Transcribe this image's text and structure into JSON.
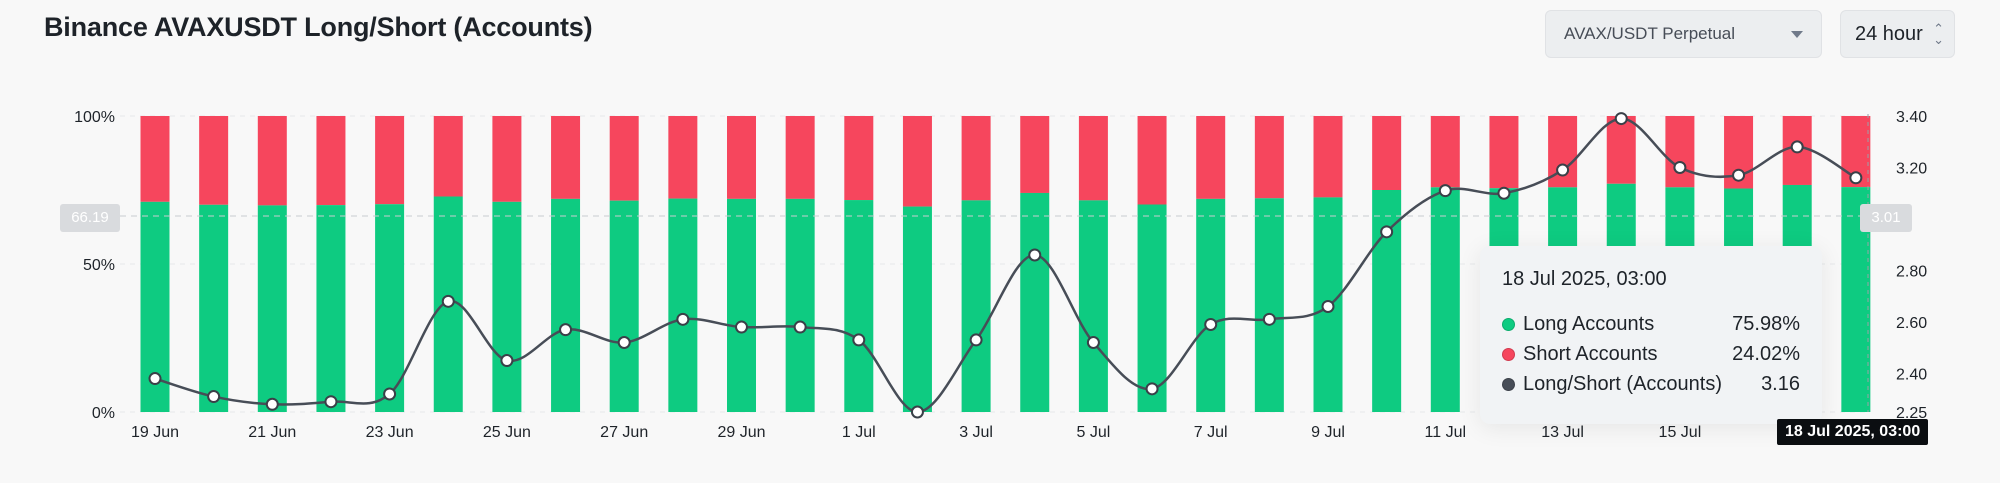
{
  "header": {
    "title": "Binance AVAXUSDT Long/Short (Accounts)",
    "pair_select": "AVAX/USDT Perpetual",
    "period_select": "24 hour"
  },
  "colors": {
    "long": "#0ecb81",
    "short": "#f6465d",
    "ratio_line": "#474d57"
  },
  "crosshair": {
    "left_value": "66.19",
    "right_value": "3.01",
    "x_label": "18 Jul 2025, 03:00"
  },
  "tooltip": {
    "title": "18 Jul 2025, 03:00",
    "rows": [
      {
        "label": "Long Accounts",
        "value": "75.98%"
      },
      {
        "label": "Short Accounts",
        "value": "24.02%"
      },
      {
        "label": "Long/Short (Accounts)",
        "value": "3.16"
      }
    ]
  },
  "chart_data": {
    "type": "bar",
    "stacked": true,
    "x": [
      "19 Jun",
      "20 Jun",
      "21 Jun",
      "22 Jun",
      "23 Jun",
      "24 Jun",
      "25 Jun",
      "26 Jun",
      "27 Jun",
      "28 Jun",
      "29 Jun",
      "30 Jun",
      "1 Jul",
      "2 Jul",
      "3 Jul",
      "4 Jul",
      "5 Jul",
      "6 Jul",
      "7 Jul",
      "8 Jul",
      "9 Jul",
      "10 Jul",
      "11 Jul",
      "12 Jul",
      "13 Jul",
      "14 Jul",
      "15 Jul",
      "16 Jul",
      "17 Jul",
      "18 Jul"
    ],
    "x_tick_labels": [
      "19 Jun",
      "21 Jun",
      "23 Jun",
      "25 Jun",
      "27 Jun",
      "29 Jun",
      "1 Jul",
      "3 Jul",
      "5 Jul",
      "7 Jul",
      "9 Jul",
      "11 Jul",
      "13 Jul",
      "15 Jul"
    ],
    "series": [
      {
        "name": "Long Accounts",
        "axis": "left",
        "values": [
          71.0,
          70.0,
          69.8,
          69.9,
          70.2,
          72.8,
          71.0,
          72.0,
          71.4,
          72.1,
          72.0,
          72.0,
          71.6,
          69.4,
          71.5,
          74.0,
          71.5,
          70.1,
          72.0,
          72.2,
          72.5,
          75.0,
          75.9,
          75.6,
          75.9,
          77.1,
          75.9,
          75.5,
          76.7,
          75.98
        ]
      },
      {
        "name": "Short Accounts",
        "axis": "left",
        "values": [
          29.0,
          30.0,
          30.2,
          30.1,
          29.8,
          27.2,
          29.0,
          28.0,
          28.6,
          27.9,
          28.0,
          28.0,
          28.4,
          30.6,
          28.5,
          26.0,
          28.5,
          29.9,
          28.0,
          27.8,
          27.5,
          25.0,
          24.1,
          24.4,
          24.1,
          22.9,
          24.1,
          24.5,
          23.3,
          24.02
        ]
      },
      {
        "name": "Long/Short (Accounts)",
        "type": "line",
        "axis": "right",
        "values": [
          2.38,
          2.31,
          2.28,
          2.29,
          2.32,
          2.68,
          2.45,
          2.57,
          2.52,
          2.61,
          2.58,
          2.58,
          2.53,
          2.25,
          2.53,
          2.86,
          2.52,
          2.34,
          2.59,
          2.61,
          2.66,
          2.95,
          3.11,
          3.1,
          3.19,
          3.39,
          3.2,
          3.17,
          3.28,
          3.16
        ]
      }
    ],
    "y_left": {
      "ticks": [
        "0%",
        "50%",
        "100%"
      ],
      "range": [
        0,
        100
      ]
    },
    "y_right": {
      "ticks": [
        "2.25",
        "2.40",
        "2.60",
        "2.80",
        "3.01",
        "3.20",
        "3.40"
      ],
      "range": [
        2.25,
        3.4
      ]
    },
    "grid": "horizontal-dashed",
    "legend": "tooltip"
  }
}
